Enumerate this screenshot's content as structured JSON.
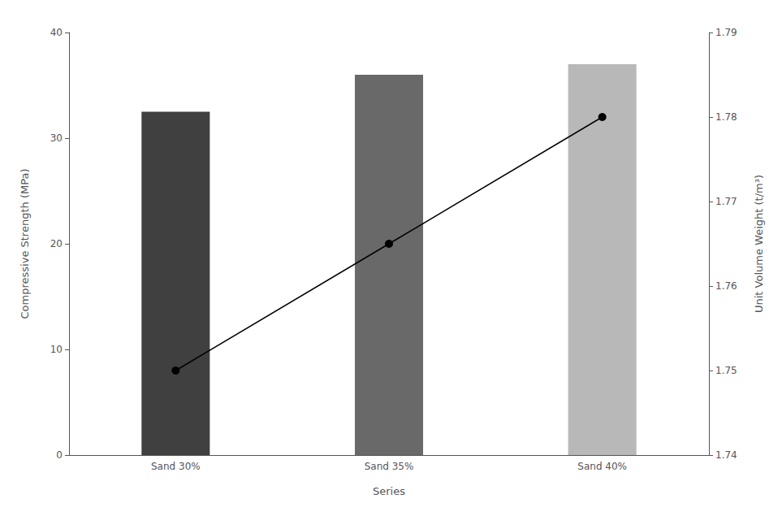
{
  "chart_data": {
    "type": "bar",
    "xlabel": "Series",
    "ylabel": "Compressive Strength (MPa)",
    "y2label": "Unit Volume Weight (t/m³)",
    "categories": [
      "Sand 30%",
      "Sand 35%",
      "Sand 40%"
    ],
    "series": [
      {
        "type": "bar",
        "colors": [
          "#404040",
          "#696969",
          "#b8b8b8"
        ],
        "values": [
          32.5,
          36.0,
          37.0
        ]
      },
      {
        "type": "line",
        "axis": "y2",
        "color": "#000000",
        "marker": "circle",
        "values": [
          1.75,
          1.765,
          1.78
        ]
      }
    ],
    "ylim": [
      0,
      40
    ],
    "yticks": [
      0,
      10,
      20,
      30,
      40
    ],
    "y2lim": [
      1.74,
      1.79
    ],
    "y2ticks": [
      1.74,
      1.75,
      1.76,
      1.77,
      1.78,
      1.79
    ],
    "grid": false
  }
}
